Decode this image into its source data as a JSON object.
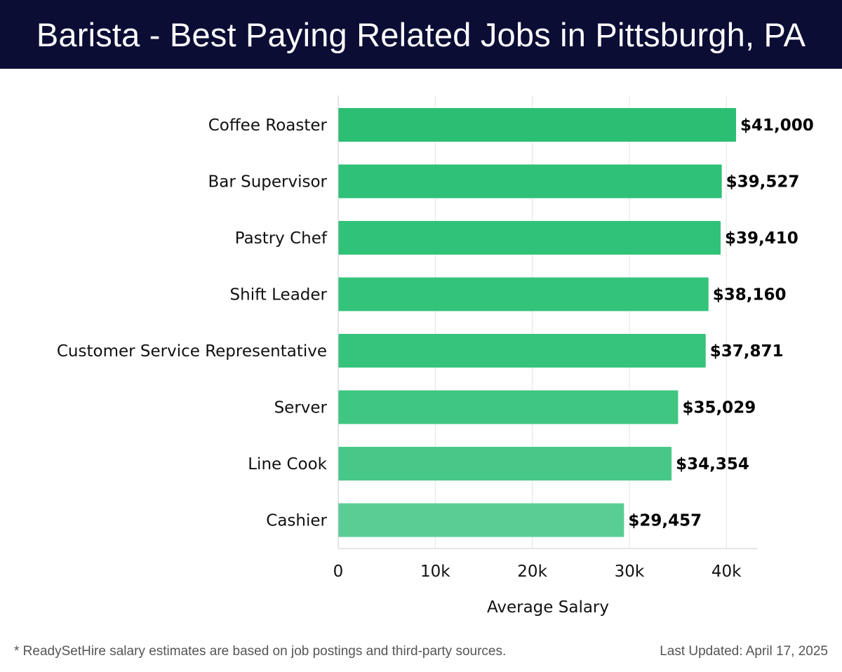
{
  "header": {
    "title": "Barista - Best Paying Related Jobs in Pittsburgh, PA"
  },
  "chart_data": {
    "type": "bar",
    "orientation": "horizontal",
    "title": "Barista - Best Paying Related Jobs in Pittsburgh, PA",
    "categories": [
      "Coffee Roaster",
      "Bar Supervisor",
      "Pastry Chef",
      "Shift Leader",
      "Customer Service Representative",
      "Server",
      "Line Cook",
      "Cashier"
    ],
    "values": [
      41000,
      39527,
      39410,
      38160,
      37871,
      35029,
      34354,
      29457
    ],
    "value_labels": [
      "$41,000",
      "$39,527",
      "$39,410",
      "$38,160",
      "$37,871",
      "$35,029",
      "$34,354",
      "$29,457"
    ],
    "bar_colors": [
      "#2bbf74",
      "#2ec177",
      "#31c279",
      "#34c37b",
      "#36c47d",
      "#3fc682",
      "#48c888",
      "#5acd95"
    ],
    "xlabel": "Average Salary",
    "ylabel": "",
    "xlim": [
      0,
      43000
    ],
    "xticks": [
      0,
      10000,
      20000,
      30000,
      40000
    ],
    "xtick_labels": [
      "0",
      "10k",
      "20k",
      "30k",
      "40k"
    ],
    "grid": true
  },
  "footer": {
    "note": "* ReadySetHire salary estimates are based on job postings and third-party sources.",
    "updated": "Last Updated: April 17, 2025"
  }
}
